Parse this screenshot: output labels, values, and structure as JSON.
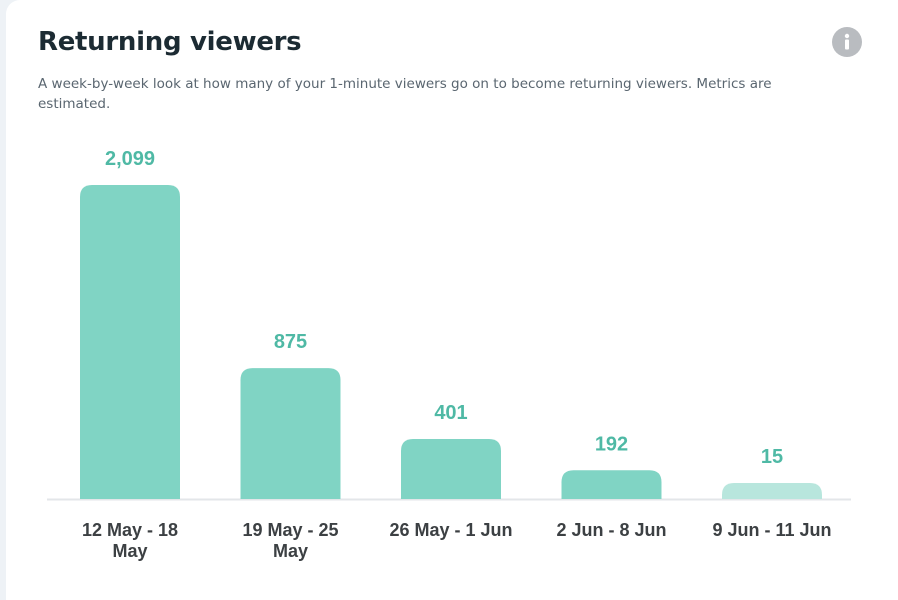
{
  "card": {
    "title": "Returning viewers",
    "subtitle": "A week-by-week look at how many of your 1-minute viewers go on to become returning viewers. Metrics are estimated.",
    "info_icon": "info-icon"
  },
  "colors": {
    "bar": "#80d4c4",
    "bar_faded": "#b8e6dd",
    "value_label": "#4fb9a5",
    "axis": "#e3e6e9",
    "category_label": "#3c4043"
  },
  "chart_data": {
    "type": "bar",
    "categories": [
      [
        "12 May - 18",
        "May"
      ],
      [
        "19 May - 25",
        "May"
      ],
      [
        "26 May - 1 Jun"
      ],
      [
        "2 Jun - 8 Jun"
      ],
      [
        "9 Jun - 11 Jun"
      ]
    ],
    "values": [
      2099,
      875,
      401,
      192,
      15
    ],
    "value_labels": [
      "2,099",
      "875",
      "401",
      "192",
      "15"
    ],
    "faded": [
      false,
      false,
      false,
      false,
      true
    ],
    "grid": false,
    "legend": "none"
  }
}
